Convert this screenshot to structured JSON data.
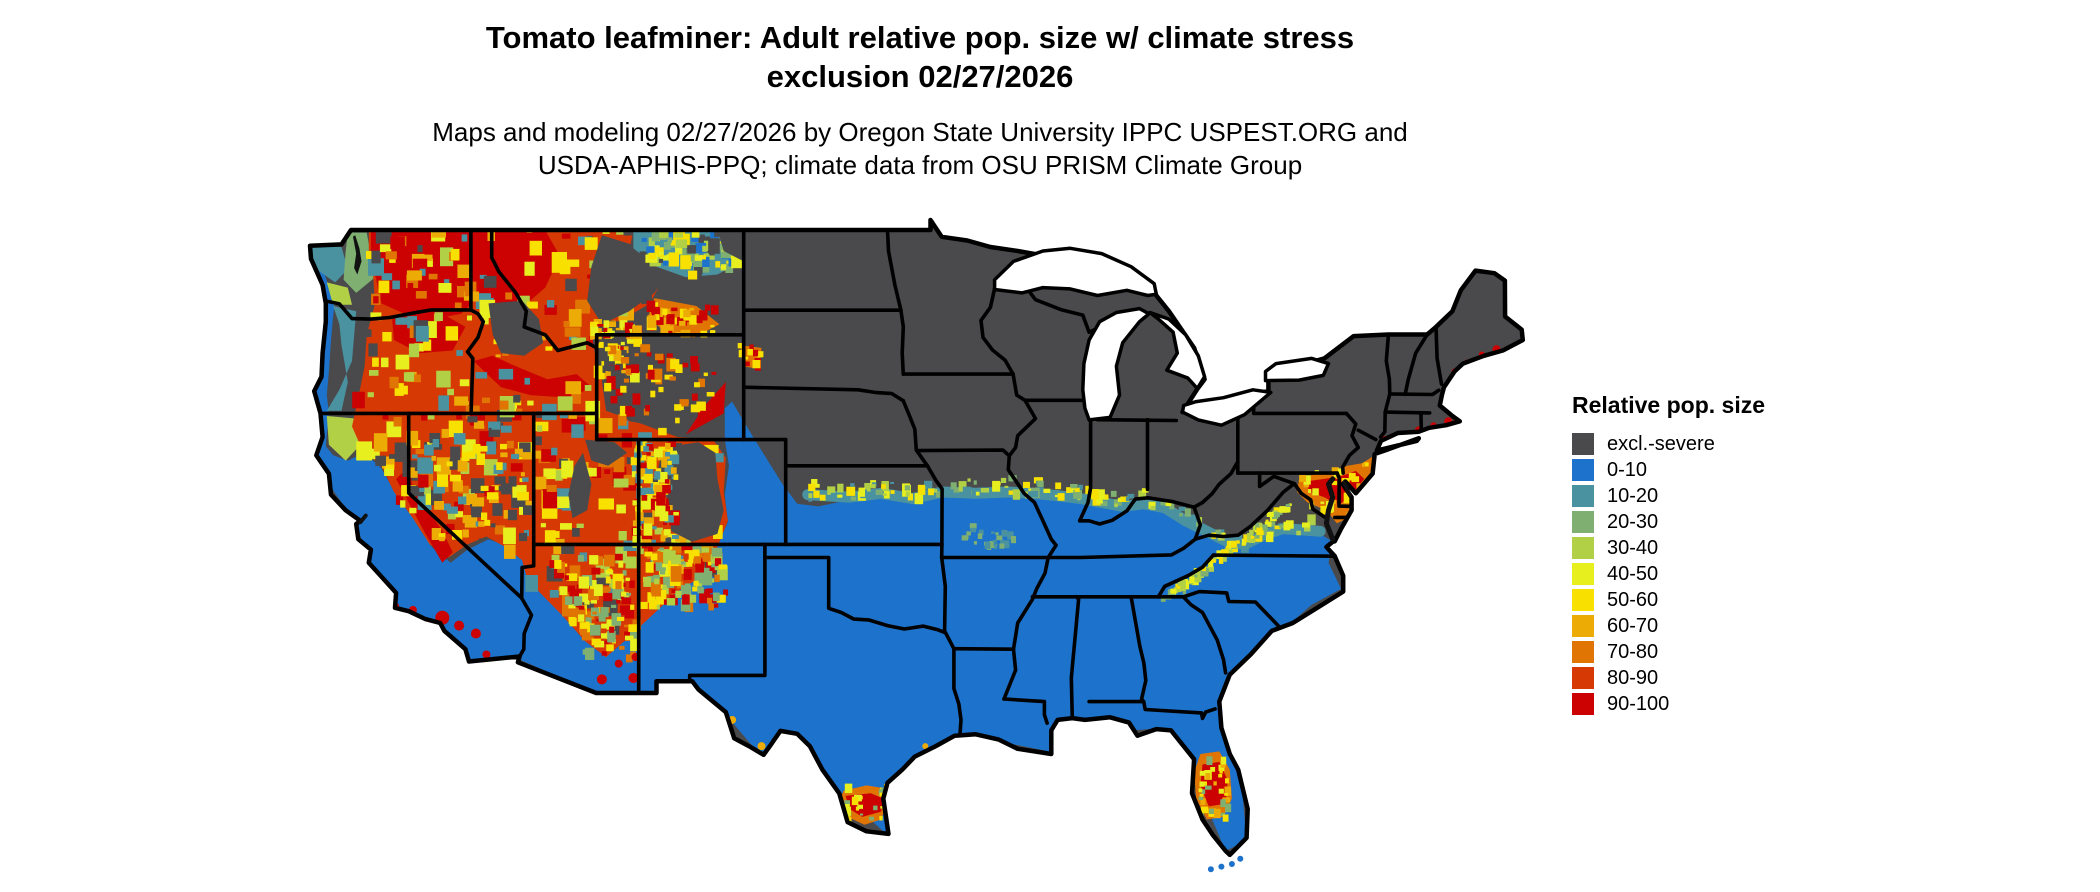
{
  "header": {
    "title_line1": "Tomato leafminer: Adult relative pop. size w/ climate stress",
    "title_line2": "exclusion 02/27/2026",
    "subtitle_line1": "Maps and modeling 02/27/2026 by Oregon State University IPPC USPEST.ORG and",
    "subtitle_line2": "USDA-APHIS-PPQ; climate data from OSU PRISM Climate Group"
  },
  "legend": {
    "title": "Relative pop. size",
    "items": [
      {
        "label": "excl.-severe",
        "color_key": "excl"
      },
      {
        "label": "0-10",
        "color_key": "r0"
      },
      {
        "label": "10-20",
        "color_key": "r10"
      },
      {
        "label": "20-30",
        "color_key": "r20"
      },
      {
        "label": "30-40",
        "color_key": "r30"
      },
      {
        "label": "40-50",
        "color_key": "r40"
      },
      {
        "label": "50-60",
        "color_key": "r50"
      },
      {
        "label": "60-70",
        "color_key": "r60"
      },
      {
        "label": "70-80",
        "color_key": "r70"
      },
      {
        "label": "80-90",
        "color_key": "r80"
      },
      {
        "label": "90-100",
        "color_key": "r90"
      }
    ]
  },
  "palette": {
    "excl": "#4a4a4c",
    "r0": "#1d72cb",
    "r10": "#4a92a0",
    "r20": "#7fb072",
    "r30": "#b2d046",
    "r40": "#e7ef1e",
    "r50": "#f8e000",
    "r60": "#edab06",
    "r70": "#e07503",
    "r80": "#d63903",
    "r90": "#cc0202",
    "border": "#000000",
    "water": "#111111",
    "background": "#ffffff"
  },
  "map": {
    "region": "Contiguous United States",
    "regions_summary": [
      {
        "area": "Northern tier, Midwest, Northeast interior",
        "class": "excl.-severe"
      },
      {
        "area": "South, Southeast, Texas, California lowlands",
        "class": "0-10"
      },
      {
        "area": "Pacific Northwest interior, Idaho, Nevada, Utah, western Montana",
        "class": "70-100 mosaic"
      },
      {
        "area": "Rocky Mountain high elevations",
        "class": "excl.-severe patches"
      },
      {
        "area": "Central Florida",
        "class": "90-100 hotspot"
      },
      {
        "area": "South Texas (Rio Grande Valley)",
        "class": "90-100 hotspot"
      },
      {
        "area": "Chesapeake Bay / New Jersey coast",
        "class": "70-100 hotspot"
      },
      {
        "area": "Ohio Valley edge and Appalachian fringe",
        "class": "10-50 transition band"
      }
    ]
  }
}
